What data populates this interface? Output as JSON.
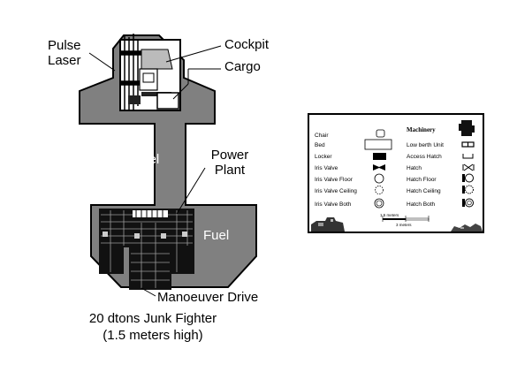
{
  "diagram": {
    "labels": {
      "pulse_laser": [
        "Pulse",
        "Laser"
      ],
      "cockpit": "Cockpit",
      "cargo": "Cargo",
      "power_plant": [
        "Power",
        "Plant"
      ],
      "manoeuver_drive": "Manoeuver Drive",
      "fuel": "Fuel"
    },
    "caption": [
      "20 dtons Junk Fighter",
      "(1.5 meters high)"
    ],
    "colors": {
      "hull": "#808080",
      "outline": "#000000",
      "machinery": "#111111"
    }
  },
  "legend": {
    "machinery_heading": "Machinery",
    "left_items": [
      "Chair",
      "Bed",
      "Locker",
      "Iris Valve",
      "Iris Valve Floor",
      "Iris Valve Ceiling",
      "Iris Valve Both"
    ],
    "right_items": [
      "Low berth Unit",
      "Access Hatch",
      "Hatch",
      "Hatch Floor",
      "Hatch Ceiling",
      "Hatch Both"
    ],
    "scale": [
      "1.5 meters",
      "3 meters"
    ]
  }
}
